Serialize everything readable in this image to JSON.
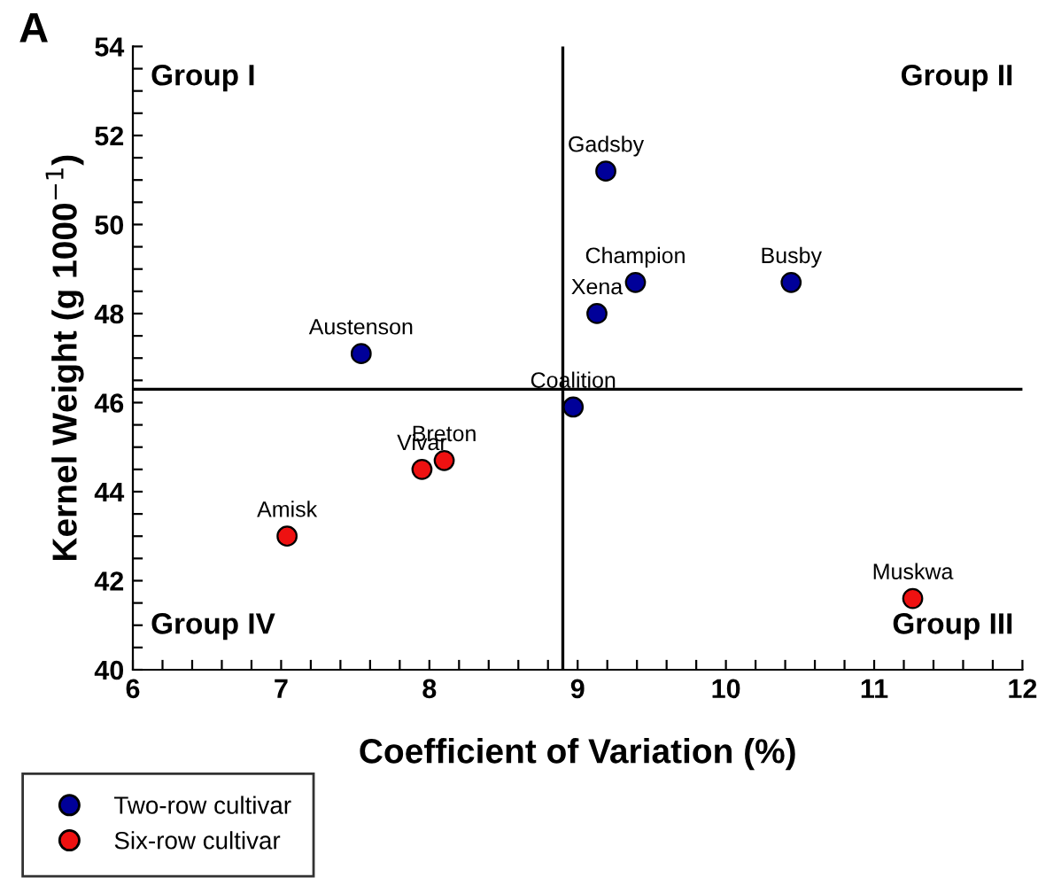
{
  "chart_data": {
    "type": "scatter",
    "title": "A",
    "xlabel": "Coefficient of Variation (%)",
    "ylabel": "Kernel Weight (g 1000$^{−1}$)",
    "xlim": [
      6,
      12
    ],
    "ylim": [
      40,
      54
    ],
    "xticks": [
      6,
      7,
      8,
      9,
      10,
      11,
      12,
      {
        "value": 6.2,
        "label": null
      },
      {
        "value": 6.4,
        "label": null
      },
      {
        "value": 6.6,
        "label": null
      },
      {
        "value": 6.8,
        "label": null
      },
      {
        "value": 7.2,
        "label": null
      },
      {
        "value": 7.4,
        "label": null
      },
      {
        "value": 7.6,
        "label": null
      },
      {
        "value": 7.8,
        "label": null
      },
      {
        "value": 8.2,
        "label": null
      },
      {
        "value": 8.4,
        "label": null
      },
      {
        "value": 8.6,
        "label": null
      },
      {
        "value": 8.8,
        "label": null
      },
      {
        "value": 9.2,
        "label": null
      },
      {
        "value": 9.4,
        "label": null
      },
      {
        "value": 9.6,
        "label": null
      },
      {
        "value": 9.8,
        "label": null
      },
      {
        "value": 10.2,
        "label": null
      },
      {
        "value": 10.4,
        "label": null
      },
      {
        "value": 10.6,
        "label": null
      },
      {
        "value": 10.8,
        "label": null
      },
      {
        "value": 11.2,
        "label": null
      },
      {
        "value": 11.4,
        "label": null
      },
      {
        "value": 11.6,
        "label": null
      },
      {
        "value": 11.8,
        "label": null
      }
    ],
    "yticks": [
      40,
      42,
      44,
      46,
      48,
      50,
      52,
      54,
      {
        "value": 40.5,
        "label": null
      },
      {
        "value": 41,
        "label": null
      },
      {
        "value": 41.5,
        "label": null
      },
      {
        "value": 42.5,
        "label": null
      },
      {
        "value": 43,
        "label": null
      },
      {
        "value": 43.5,
        "label": null
      },
      {
        "value": 44.5,
        "label": null
      },
      {
        "value": 45,
        "label": null
      },
      {
        "value": 45.5,
        "label": null
      },
      {
        "value": 46.5,
        "label": null
      },
      {
        "value": 47,
        "label": null
      },
      {
        "value": 47.5,
        "label": null
      },
      {
        "value": 48.5,
        "label": null
      },
      {
        "value": 49,
        "label": null
      },
      {
        "value": 49.5,
        "label": null
      },
      {
        "value": 50.5,
        "label": null
      },
      {
        "value": 51,
        "label": null
      },
      {
        "value": 51.5,
        "label": null
      },
      {
        "value": 52.5,
        "label": null
      },
      {
        "value": 53,
        "label": null
      },
      {
        "value": 53.5,
        "label": null
      }
    ],
    "series": [
      {
        "name": "Two-row cultivar",
        "color": "#000099",
        "x": [
          9.19,
          9.39,
          10.44,
          9.13,
          7.54,
          8.97
        ],
        "values": [
          51.2,
          48.7,
          48.7,
          48.0,
          47.1,
          45.9
        ]
      },
      {
        "name": "Six-row cultivar",
        "color": "#ee1111",
        "x": [
          7.95,
          8.1,
          7.04,
          11.26
        ],
        "values": [
          44.5,
          44.7,
          43.0,
          41.6
        ]
      }
    ],
    "marker": "circle",
    "grid": false,
    "legend": "bottom left",
    "ref_lines": [
      {
        "axis": "x",
        "value": 8.9,
        "label": null,
        "color": "#000000"
      },
      {
        "axis": "y",
        "value": 46.3,
        "label": null,
        "color": "#000000"
      }
    ],
    "annotations": [
      {
        "text": "Gadsby",
        "x": 9.19,
        "y": 51.2
      },
      {
        "text": "Champion",
        "x": 9.39,
        "y": 48.7
      },
      {
        "text": "Busby",
        "x": 10.44,
        "y": 48.7
      },
      {
        "text": "Xena",
        "x": 9.13,
        "y": 48.0
      },
      {
        "text": "Austenson",
        "x": 7.54,
        "y": 47.1
      },
      {
        "text": "Coalition",
        "x": 8.97,
        "y": 45.9
      },
      {
        "text": "Vivar",
        "x": 7.95,
        "y": 44.5
      },
      {
        "text": "Breton",
        "x": 8.1,
        "y": 44.7
      },
      {
        "text": "Amisk",
        "x": 7.04,
        "y": 43.0
      },
      {
        "text": "Muskwa",
        "x": 11.26,
        "y": 41.6
      },
      "Group I",
      "Group II",
      "Group III",
      "Group IV"
    ]
  }
}
